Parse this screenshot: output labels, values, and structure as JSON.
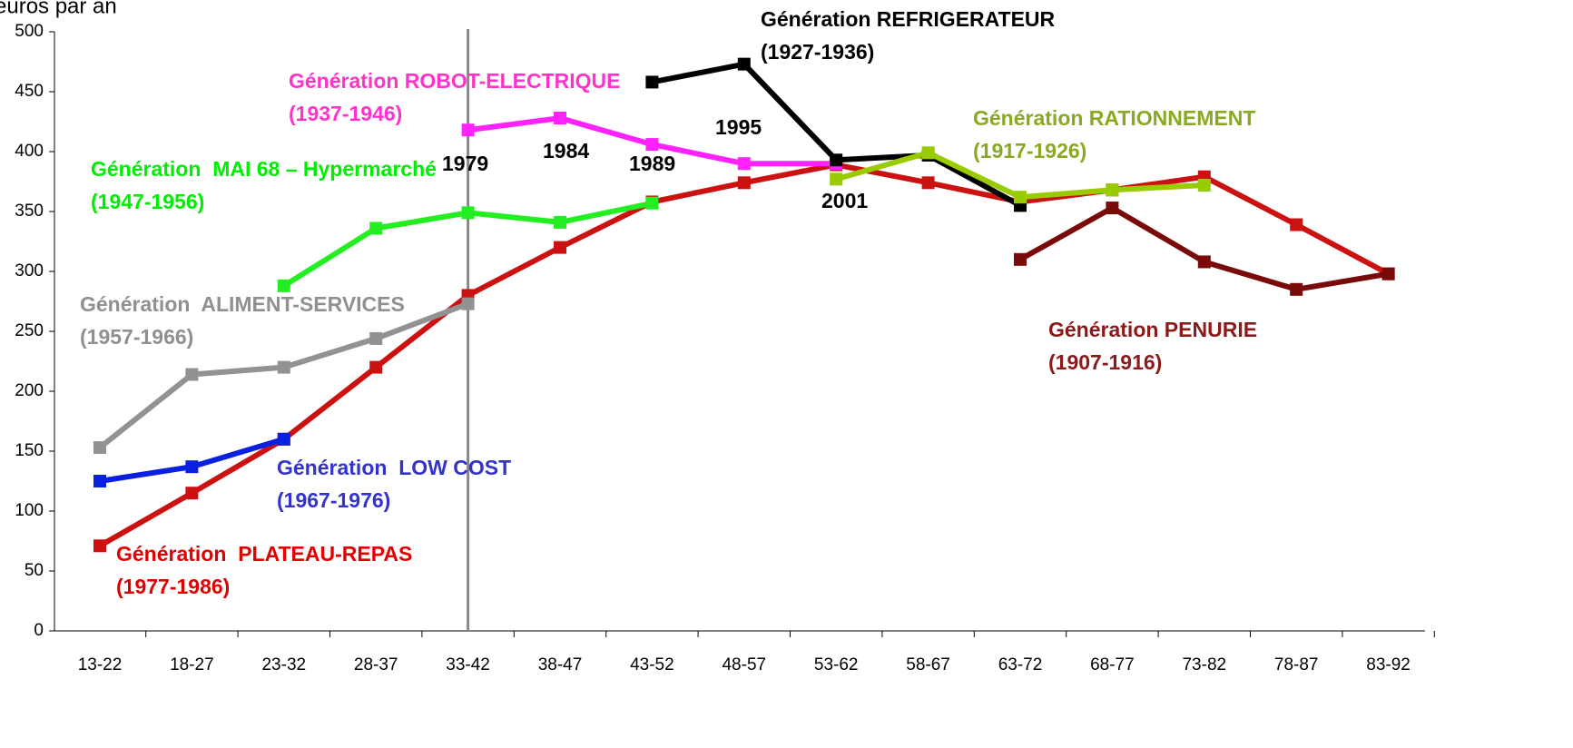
{
  "chart_data": {
    "type": "line",
    "y_label": "euros par an",
    "categories": [
      "13-22",
      "18-27",
      "23-32",
      "28-37",
      "33-42",
      "38-47",
      "43-52",
      "48-57",
      "53-62",
      "58-67",
      "63-72",
      "68-77",
      "73-82",
      "78-87",
      "83-92"
    ],
    "ylim": [
      0,
      500
    ],
    "yticks": [
      0,
      50,
      100,
      150,
      200,
      250,
      300,
      350,
      400,
      450,
      500
    ],
    "annotations": [
      "1979",
      "1984",
      "1989",
      "1995",
      "2001"
    ],
    "series": [
      {
        "name": "Génération  PLATEAU-REPAS",
        "period": "(1977-1986)",
        "color": "#cc1111",
        "values": [
          71,
          115,
          160,
          220,
          280,
          320,
          358,
          374,
          389,
          374,
          358,
          368,
          379,
          339,
          298
        ]
      },
      {
        "name": "Génération  LOW COST",
        "period": "(1967-1976)",
        "color": "#0a20e0",
        "values": [
          125,
          137,
          160,
          null,
          null,
          null,
          null,
          null,
          null,
          null,
          null,
          null,
          null,
          null,
          null
        ]
      },
      {
        "name": "Génération  ALIMENT-SERVICES",
        "period": "(1957-1966)",
        "color": "#929292",
        "values": [
          153,
          214,
          220,
          244,
          273,
          null,
          null,
          null,
          null,
          null,
          null,
          null,
          null,
          null,
          null
        ]
      },
      {
        "name": "Génération  MAI 68 – Hypermarché",
        "period": "(1947-1956)",
        "color": "#22ee22",
        "values": [
          null,
          null,
          288,
          336,
          349,
          341,
          357,
          null,
          null,
          null,
          null,
          null,
          null,
          null,
          null
        ]
      },
      {
        "name": "Génération ROBOT-ELECTRIQUE",
        "period": "(1937-1946)",
        "color": "#ff22ff",
        "values": [
          null,
          null,
          null,
          null,
          418,
          428,
          406,
          390,
          390,
          null,
          null,
          null,
          null,
          null,
          null
        ]
      },
      {
        "name": "Génération REFRIGERATEUR",
        "period": "(1927-1936)",
        "color": "#000000",
        "values": [
          null,
          null,
          null,
          null,
          null,
          null,
          458,
          473,
          393,
          397,
          355,
          null,
          null,
          null,
          null
        ]
      },
      {
        "name": "Génération RATIONNEMENT",
        "period": "(1917-1926)",
        "color": "#99cc00",
        "values": [
          null,
          null,
          null,
          null,
          null,
          null,
          null,
          null,
          377,
          399,
          362,
          368,
          372,
          null,
          null
        ]
      },
      {
        "name": "Génération PENURIE",
        "period": "(1907-1916)",
        "color": "#7a0a0a",
        "values": [
          null,
          null,
          null,
          null,
          null,
          null,
          null,
          null,
          null,
          null,
          310,
          353,
          308,
          285,
          298
        ]
      }
    ]
  }
}
